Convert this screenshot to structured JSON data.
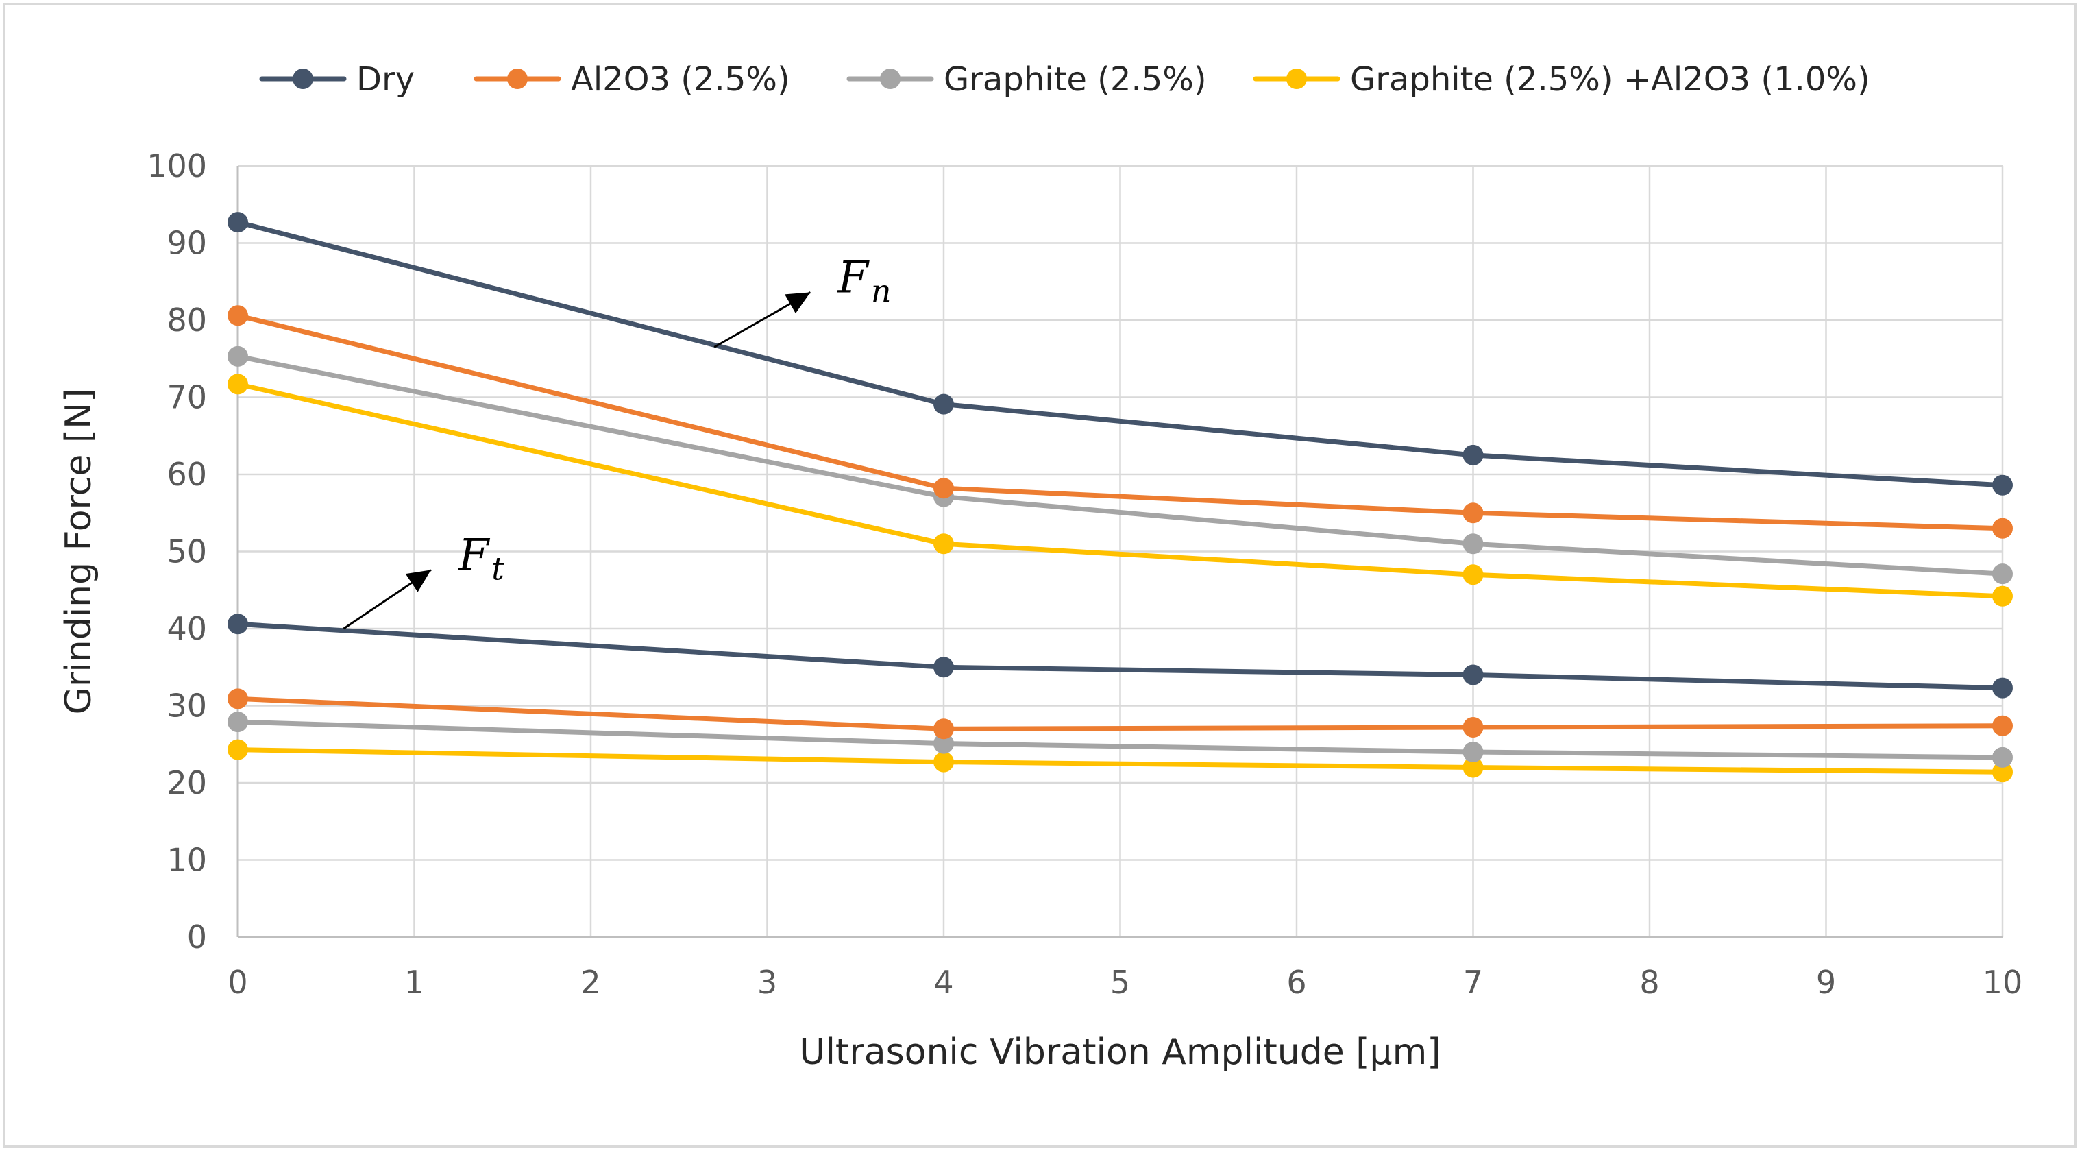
{
  "chart_data": {
    "type": "line",
    "title": "",
    "xlabel": "Ultrasonic Vibration Amplitude [µm]",
    "ylabel": "Grinding Force [N]",
    "xlim": [
      0,
      10
    ],
    "ylim": [
      0,
      100
    ],
    "x_ticks": [
      "0",
      "1",
      "2",
      "3",
      "4",
      "5",
      "6",
      "7",
      "8",
      "9",
      "10"
    ],
    "y_ticks": [
      "0",
      "10",
      "20",
      "30",
      "40",
      "50",
      "60",
      "70",
      "80",
      "90",
      "100"
    ],
    "grid": true,
    "legend_position": "top",
    "series": [
      {
        "name": "Dry",
        "color": "#44546a",
        "groups": [
          {
            "x": [
              0,
              4,
              7,
              10
            ],
            "y": [
              92.7,
              69.1,
              62.5,
              58.6
            ]
          },
          {
            "x": [
              0,
              4,
              7,
              10
            ],
            "y": [
              40.6,
              35.0,
              34.0,
              32.3
            ]
          }
        ]
      },
      {
        "name": "Al2O3 (2.5%)",
        "color": "#ed7d31",
        "groups": [
          {
            "x": [
              0,
              4,
              7,
              10
            ],
            "y": [
              80.6,
              58.2,
              55.0,
              53.0
            ]
          },
          {
            "x": [
              0,
              4,
              7,
              10
            ],
            "y": [
              30.9,
              27.0,
              27.2,
              27.4
            ]
          }
        ]
      },
      {
        "name": "Graphite (2.5%)",
        "color": "#a5a5a5",
        "groups": [
          {
            "x": [
              0,
              4,
              7,
              10
            ],
            "y": [
              75.3,
              57.1,
              51.0,
              47.1
            ]
          },
          {
            "x": [
              0,
              4,
              7,
              10
            ],
            "y": [
              27.9,
              25.1,
              24.0,
              23.3
            ]
          }
        ]
      },
      {
        "name": "Graphite (2.5%) +Al2O3 (1.0%)",
        "color": "#ffc000",
        "groups": [
          {
            "x": [
              0,
              4,
              7,
              10
            ],
            "y": [
              71.7,
              51.0,
              47.0,
              44.2
            ]
          },
          {
            "x": [
              0,
              4,
              7,
              10
            ],
            "y": [
              24.3,
              22.7,
              22.0,
              21.4
            ]
          }
        ]
      }
    ],
    "annotations": [
      {
        "label": "F",
        "subscript": "n",
        "target_x": 2.7,
        "target_y": 76.5,
        "text_x": 3.4,
        "text_y": 84.5
      },
      {
        "label": "F",
        "subscript": "t",
        "target_x": 0.6,
        "target_y": 40.0,
        "text_x": 1.25,
        "text_y": 48.5
      }
    ]
  }
}
